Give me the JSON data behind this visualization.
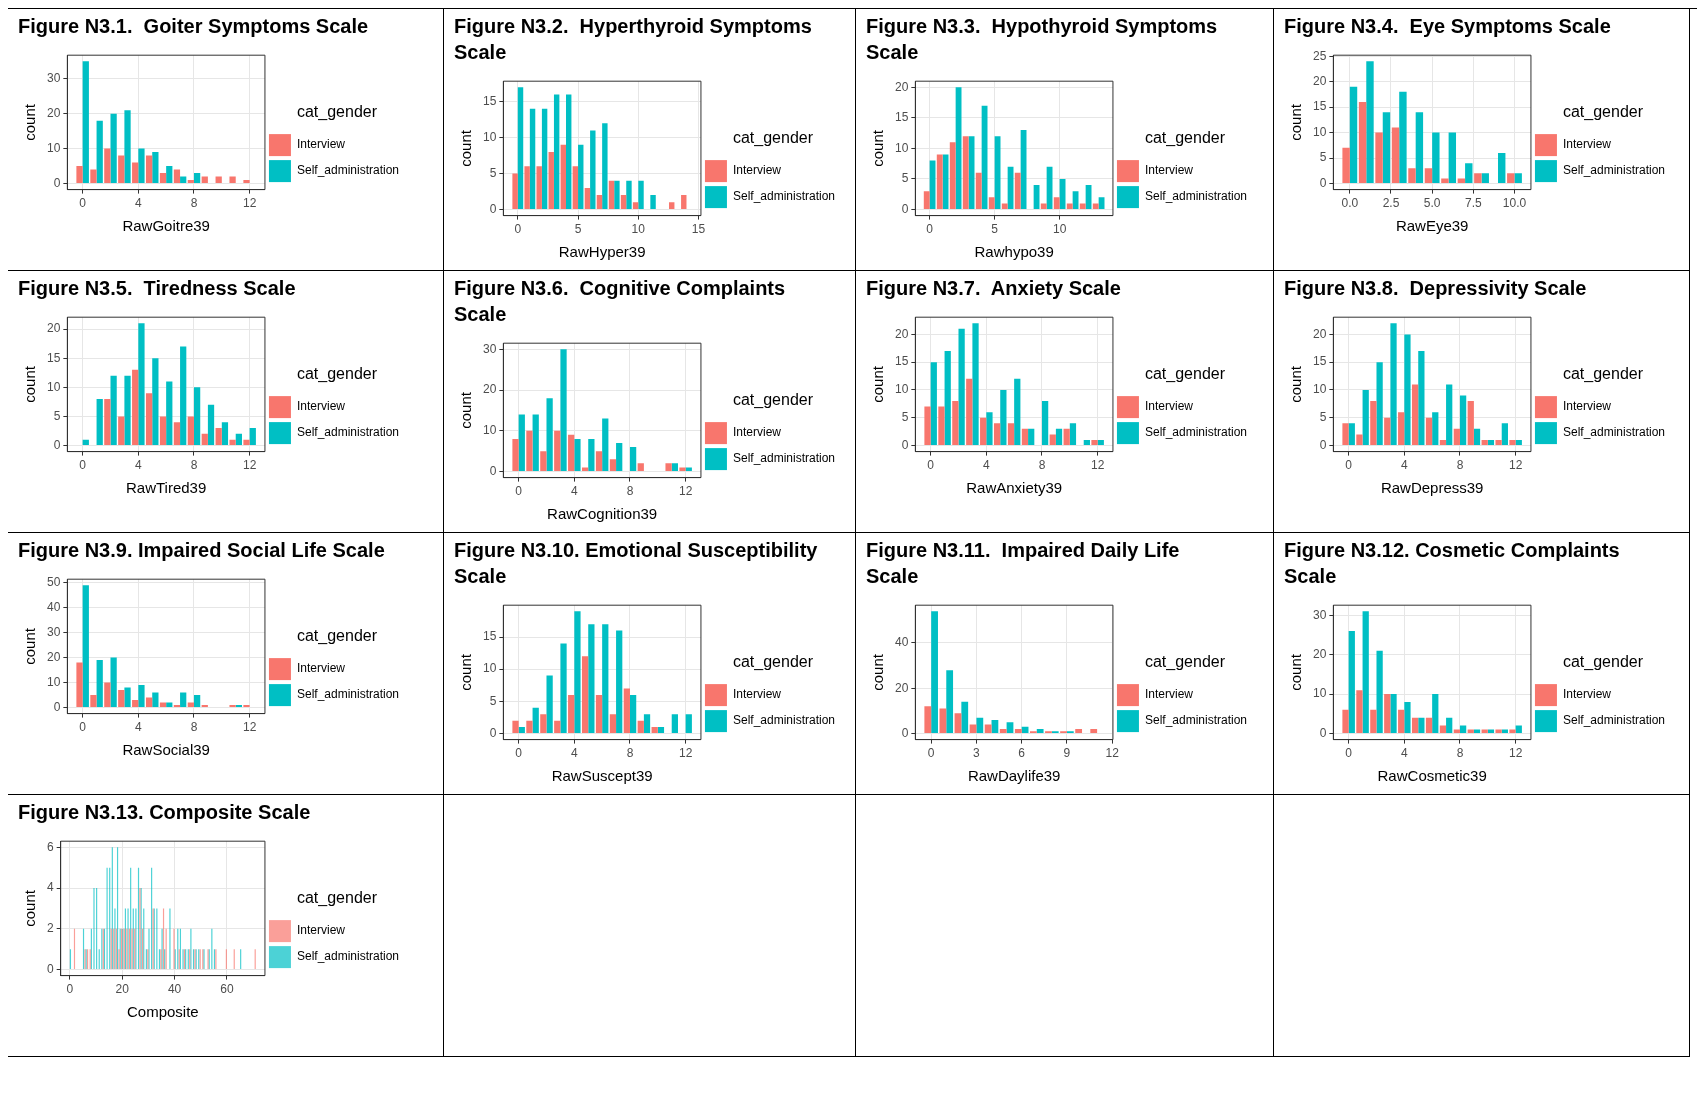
{
  "chart_data": [
    {
      "type": "bar",
      "title": "Figure N3.1.  Goiter Symptoms Scale",
      "xlabel": "RawGoitre39",
      "ylabel": "count",
      "legend_title": "cat_gender",
      "legend": "right",
      "grid": true,
      "x": [
        0,
        1,
        2,
        3,
        4,
        5,
        6,
        7,
        8,
        9,
        10,
        11,
        12
      ],
      "xlim": [
        -1.1,
        13.1
      ],
      "xticks": [
        0,
        4,
        8,
        12
      ],
      "ylim": [
        -1.75,
        36.75
      ],
      "yticks": [
        0,
        10,
        20,
        30
      ],
      "series": [
        {
          "name": "Interview",
          "color": "#f8766d",
          "values": [
            5,
            4,
            10,
            8,
            6,
            8,
            3,
            4,
            1,
            2,
            2,
            2,
            1
          ]
        },
        {
          "name": "Self_administration",
          "color": "#00bfc4",
          "values": [
            35,
            18,
            20,
            21,
            10,
            9,
            5,
            2,
            3,
            null,
            null,
            null,
            null
          ]
        }
      ]
    },
    {
      "type": "bar",
      "title": "Figure N3.2.  Hyperthyroid Symptoms Scale",
      "xlabel": "RawHyper39",
      "ylabel": "count",
      "legend_title": "cat_gender",
      "legend": "right",
      "grid": true,
      "x": [
        0,
        1,
        2,
        3,
        4,
        5,
        6,
        7,
        8,
        9,
        10,
        11,
        12,
        13,
        14
      ],
      "xlim": [
        -1.2,
        15.2
      ],
      "xticks": [
        0,
        5,
        10,
        15
      ],
      "ylim": [
        -0.85,
        17.85
      ],
      "yticks": [
        0,
        5,
        10,
        15
      ],
      "series": [
        {
          "name": "Interview",
          "color": "#f8766d",
          "values": [
            5,
            6,
            6,
            8,
            9,
            6,
            3,
            2,
            4,
            2,
            1,
            null,
            null,
            1,
            2
          ]
        },
        {
          "name": "Self_administration",
          "color": "#00bfc4",
          "values": [
            17,
            14,
            14,
            16,
            16,
            9,
            11,
            12,
            4,
            4,
            4,
            2,
            null,
            null,
            null
          ]
        }
      ]
    },
    {
      "type": "bar",
      "title": "Figure N3.3.  Hypothyroid Symptoms Scale",
      "xlabel": "Rawhypo39",
      "ylabel": "count",
      "legend_title": "cat_gender",
      "legend": "right",
      "grid": true,
      "x": [
        0,
        1,
        2,
        3,
        4,
        5,
        6,
        7,
        8,
        9,
        10,
        11,
        12,
        13
      ],
      "xlim": [
        -1.1,
        14.1
      ],
      "xticks": [
        0,
        5,
        10
      ],
      "ylim": [
        -1,
        21
      ],
      "yticks": [
        0,
        5,
        10,
        15,
        20
      ],
      "series": [
        {
          "name": "Interview",
          "color": "#f8766d",
          "values": [
            3,
            9,
            11,
            12,
            6,
            2,
            1,
            6,
            null,
            1,
            2,
            1,
            1,
            1
          ]
        },
        {
          "name": "Self_administration",
          "color": "#00bfc4",
          "values": [
            8,
            9,
            20,
            12,
            17,
            12,
            7,
            13,
            4,
            7,
            5,
            3,
            4,
            2
          ]
        }
      ]
    },
    {
      "type": "bar",
      "title": "Figure N3.4.  Eye Symptoms Scale",
      "xlabel": "RawEye39",
      "ylabel": "count",
      "legend_title": "cat_gender",
      "legend": "right",
      "grid": true,
      "x": [
        0,
        1,
        2,
        3,
        4,
        5,
        6,
        7,
        8,
        9,
        10
      ],
      "xlim": [
        -1,
        11
      ],
      "xticks": [
        {
          "value": 0,
          "label": "0.0"
        },
        {
          "value": 2.5,
          "label": "2.5"
        },
        {
          "value": 5,
          "label": "5.0"
        },
        {
          "value": 7.5,
          "label": "7.5"
        },
        {
          "value": 10,
          "label": "10.0"
        }
      ],
      "ylim": [
        -1.2,
        25.2
      ],
      "yticks": [
        0,
        5,
        10,
        15,
        20,
        25
      ],
      "series": [
        {
          "name": "Interview",
          "color": "#f8766d",
          "values": [
            7,
            16,
            10,
            11,
            3,
            3,
            1,
            1,
            2,
            null,
            2
          ]
        },
        {
          "name": "Self_administration",
          "color": "#00bfc4",
          "values": [
            19,
            24,
            14,
            18,
            14,
            10,
            10,
            4,
            2,
            6,
            2
          ]
        }
      ]
    },
    {
      "type": "bar",
      "title": "Figure N3.5.  Tiredness Scale",
      "xlabel": "RawTired39",
      "ylabel": "count",
      "legend_title": "cat_gender",
      "legend": "right",
      "grid": true,
      "x": [
        0,
        1,
        2,
        3,
        4,
        5,
        6,
        7,
        8,
        9,
        10,
        11,
        12
      ],
      "xlim": [
        -1.1,
        13.1
      ],
      "xticks": [
        0,
        4,
        8,
        12
      ],
      "ylim": [
        -1.05,
        22.05
      ],
      "yticks": [
        0,
        5,
        10,
        15,
        20
      ],
      "series": [
        {
          "name": "Interview",
          "color": "#f8766d",
          "values": [
            null,
            null,
            8,
            5,
            13,
            9,
            5,
            4,
            5,
            2,
            3,
            1,
            1
          ]
        },
        {
          "name": "Self_administration",
          "color": "#00bfc4",
          "values": [
            1,
            8,
            12,
            12,
            21,
            15,
            11,
            17,
            10,
            7,
            4,
            2,
            3
          ]
        }
      ]
    },
    {
      "type": "bar",
      "title": "Figure N3.6.  Cognitive Complaints Scale",
      "xlabel": "RawCognition39",
      "ylabel": "count",
      "legend_title": "cat_gender",
      "legend": "right",
      "grid": true,
      "x": [
        0,
        1,
        2,
        3,
        4,
        5,
        6,
        7,
        8,
        9,
        10,
        11,
        12
      ],
      "xlim": [
        -1.1,
        13.1
      ],
      "xticks": [
        0,
        4,
        8,
        12
      ],
      "ylim": [
        -1.5,
        31.5
      ],
      "yticks": [
        0,
        10,
        20,
        30
      ],
      "series": [
        {
          "name": "Interview",
          "color": "#f8766d",
          "values": [
            8,
            10,
            5,
            10,
            9,
            1,
            5,
            3,
            null,
            2,
            null,
            2,
            1
          ]
        },
        {
          "name": "Self_administration",
          "color": "#00bfc4",
          "values": [
            14,
            14,
            18,
            30,
            8,
            8,
            13,
            7,
            6,
            null,
            null,
            2,
            1
          ]
        }
      ]
    },
    {
      "type": "bar",
      "title": "Figure N3.7.  Anxiety Scale",
      "xlabel": "RawAnxiety39",
      "ylabel": "count",
      "legend_title": "cat_gender",
      "legend": "right",
      "grid": true,
      "x": [
        0,
        1,
        2,
        3,
        4,
        5,
        6,
        7,
        8,
        9,
        10,
        11,
        12
      ],
      "xlim": [
        -1.1,
        13.1
      ],
      "xticks": [
        0,
        4,
        8,
        12
      ],
      "ylim": [
        -1.1,
        23.1
      ],
      "yticks": [
        0,
        5,
        10,
        15,
        20
      ],
      "series": [
        {
          "name": "Interview",
          "color": "#f8766d",
          "values": [
            7,
            7,
            8,
            12,
            5,
            4,
            4,
            3,
            null,
            2,
            3,
            null,
            1
          ]
        },
        {
          "name": "Self_administration",
          "color": "#00bfc4",
          "values": [
            15,
            17,
            21,
            22,
            6,
            10,
            12,
            3,
            8,
            3,
            4,
            1,
            1
          ]
        }
      ]
    },
    {
      "type": "bar",
      "title": "Figure N3.8.  Depressivity Scale",
      "xlabel": "RawDepress39",
      "ylabel": "count",
      "legend_title": "cat_gender",
      "legend": "right",
      "grid": true,
      "x": [
        0,
        1,
        2,
        3,
        4,
        5,
        6,
        7,
        8,
        9,
        10,
        11,
        12
      ],
      "xlim": [
        -1.1,
        13.1
      ],
      "xticks": [
        0,
        4,
        8,
        12
      ],
      "ylim": [
        -1.1,
        23.1
      ],
      "yticks": [
        0,
        5,
        10,
        15,
        20
      ],
      "series": [
        {
          "name": "Interview",
          "color": "#f8766d",
          "values": [
            4,
            2,
            8,
            5,
            6,
            11,
            5,
            1,
            3,
            8,
            1,
            1,
            1
          ]
        },
        {
          "name": "Self_administration",
          "color": "#00bfc4",
          "values": [
            4,
            10,
            15,
            22,
            20,
            17,
            6,
            11,
            9,
            3,
            1,
            4,
            1
          ]
        }
      ]
    },
    {
      "type": "bar",
      "title": "Figure N3.9. Impaired Social Life Scale",
      "xlabel": "RawSocial39",
      "ylabel": "count",
      "legend_title": "cat_gender",
      "legend": "right",
      "grid": true,
      "x": [
        0,
        1,
        2,
        3,
        4,
        5,
        6,
        7,
        8,
        9,
        10,
        11,
        12
      ],
      "xlim": [
        -1.1,
        13.1
      ],
      "xticks": [
        0,
        4,
        8,
        12
      ],
      "ylim": [
        -2.45,
        51.45
      ],
      "yticks": [
        0,
        10,
        20,
        30,
        40,
        50
      ],
      "series": [
        {
          "name": "Interview",
          "color": "#f8766d",
          "values": [
            18,
            5,
            10,
            7,
            3,
            4,
            2,
            1,
            2,
            1,
            null,
            1,
            1
          ]
        },
        {
          "name": "Self_administration",
          "color": "#00bfc4",
          "values": [
            49,
            19,
            20,
            8,
            9,
            6,
            2,
            6,
            5,
            null,
            null,
            1,
            null
          ]
        }
      ]
    },
    {
      "type": "bar",
      "title": "Figure N3.10. Emotional Susceptibility Scale",
      "xlabel": "RawSuscept39",
      "ylabel": "count",
      "legend_title": "cat_gender",
      "legend": "right",
      "grid": true,
      "x": [
        0,
        1,
        2,
        3,
        4,
        5,
        6,
        7,
        8,
        9,
        10,
        11,
        12
      ],
      "xlim": [
        -1.1,
        13.1
      ],
      "xticks": [
        0,
        4,
        8,
        12
      ],
      "ylim": [
        -0.95,
        19.95
      ],
      "yticks": [
        0,
        5,
        10,
        15
      ],
      "series": [
        {
          "name": "Interview",
          "color": "#f8766d",
          "values": [
            2,
            2,
            3,
            2,
            6,
            12,
            6,
            3,
            7,
            2,
            1,
            null,
            null
          ]
        },
        {
          "name": "Self_administration",
          "color": "#00bfc4",
          "values": [
            1,
            4,
            9,
            14,
            19,
            17,
            17,
            16,
            6,
            3,
            1,
            3,
            3
          ]
        }
      ]
    },
    {
      "type": "bar",
      "title": "Figure N3.11.  Impaired Daily Life Scale",
      "xlabel": "RawDaylife39",
      "ylabel": "count",
      "legend_title": "cat_gender",
      "legend": "right",
      "grid": true,
      "x": [
        0,
        1,
        2,
        3,
        4,
        5,
        6,
        7,
        8,
        9,
        10,
        11
      ],
      "xlim": [
        -1.05,
        12.05
      ],
      "xticks": [
        0,
        3,
        6,
        9,
        12
      ],
      "ylim": [
        -2.7,
        56.7
      ],
      "yticks": [
        0,
        20,
        40
      ],
      "series": [
        {
          "name": "Interview",
          "color": "#f8766d",
          "values": [
            12,
            11,
            9,
            4,
            4,
            2,
            2,
            1,
            1,
            1,
            2,
            2
          ]
        },
        {
          "name": "Self_administration",
          "color": "#00bfc4",
          "values": [
            54,
            28,
            14,
            7,
            6,
            5,
            3,
            2,
            1,
            1,
            null,
            null
          ]
        }
      ]
    },
    {
      "type": "bar",
      "title": "Figure N3.12. Cosmetic Complaints Scale",
      "xlabel": "RawCosmetic39",
      "ylabel": "count",
      "legend_title": "cat_gender",
      "legend": "right",
      "grid": true,
      "x": [
        0,
        1,
        2,
        3,
        4,
        5,
        6,
        7,
        8,
        9,
        10,
        11,
        12
      ],
      "xlim": [
        -1.1,
        13.1
      ],
      "xticks": [
        0,
        4,
        8,
        12
      ],
      "ylim": [
        -1.55,
        32.55
      ],
      "yticks": [
        0,
        10,
        20,
        30
      ],
      "series": [
        {
          "name": "Interview",
          "color": "#f8766d",
          "values": [
            6,
            11,
            6,
            10,
            6,
            4,
            4,
            2,
            1,
            1,
            1,
            1,
            1
          ]
        },
        {
          "name": "Self_administration",
          "color": "#00bfc4",
          "values": [
            26,
            31,
            21,
            10,
            8,
            4,
            10,
            4,
            2,
            1,
            1,
            1,
            2
          ]
        }
      ]
    },
    {
      "type": "bar",
      "title": "Figure N3.13. Composite Scale",
      "xlabel": "Composite",
      "ylabel": "count",
      "legend_title": "cat_gender",
      "legend": "right",
      "grid": true,
      "xlim": [
        -3.5,
        74.5
      ],
      "xticks": [
        0,
        20,
        40,
        60
      ],
      "ylim": [
        -0.3,
        6.3
      ],
      "yticks": [
        0,
        2,
        4,
        6
      ],
      "series": [
        {
          "name": "Interview",
          "color": "#f8766d",
          "x": [
            2,
            6,
            7,
            8,
            13,
            16,
            17,
            18,
            19,
            20,
            21,
            22,
            23,
            24,
            25,
            27,
            28,
            30,
            32,
            35,
            36,
            37,
            40,
            42,
            44,
            46,
            48,
            50,
            51,
            53,
            56,
            60,
            63,
            71
          ],
          "values": [
            2,
            1,
            1,
            1,
            2,
            2,
            2,
            2,
            1,
            2,
            2,
            2,
            2,
            2,
            2,
            4,
            2,
            1,
            3,
            1,
            3,
            2,
            2,
            1,
            1,
            1,
            1,
            1,
            1,
            1,
            1,
            1,
            1,
            1
          ]
        },
        {
          "name": "Self_administration",
          "color": "#00bfc4",
          "x": [
            0,
            5,
            6,
            8,
            9,
            10,
            11,
            12,
            13,
            14,
            15,
            16,
            17,
            18,
            19,
            20,
            21,
            22,
            23,
            24,
            25,
            26,
            27,
            28,
            29,
            30,
            31,
            32,
            33,
            34,
            35,
            36,
            38,
            40,
            41,
            42,
            43,
            44,
            45,
            46,
            47,
            48,
            49,
            51,
            53,
            54,
            55,
            65
          ],
          "values": [
            1,
            2,
            1,
            2,
            4,
            4,
            1,
            2,
            2,
            5,
            5,
            6,
            3,
            6,
            2,
            2,
            3,
            3,
            5,
            3,
            3,
            5,
            4,
            3,
            1,
            2,
            5,
            3,
            3,
            1,
            2,
            1,
            3,
            1,
            2,
            2,
            1,
            1,
            1,
            2,
            1,
            1,
            1,
            1,
            1,
            2,
            1,
            1
          ]
        }
      ]
    }
  ]
}
